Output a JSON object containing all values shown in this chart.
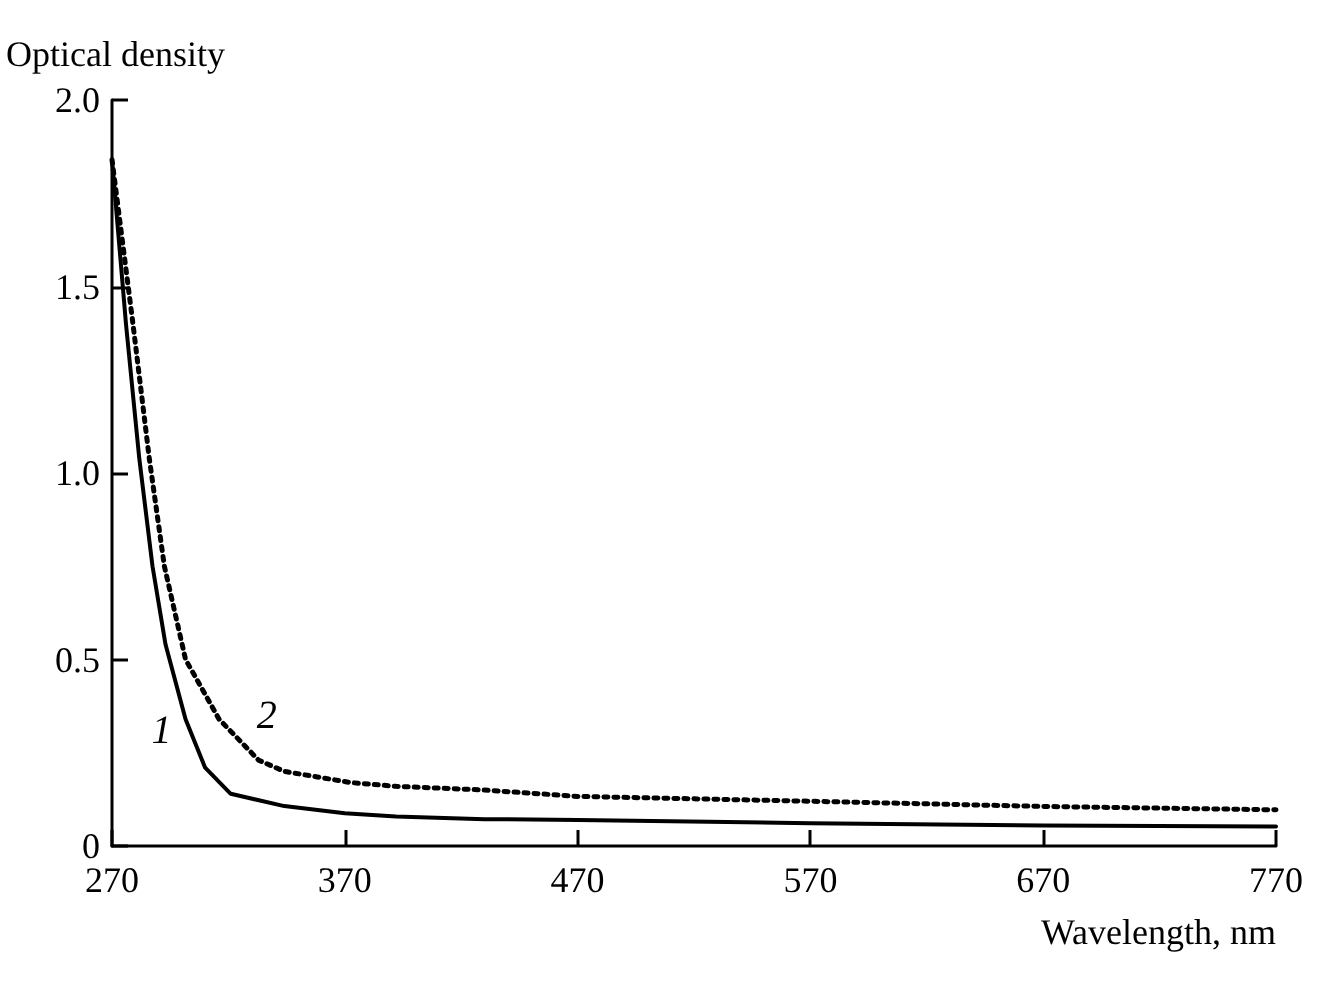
{
  "chart_data": {
    "type": "line",
    "xlabel": "Wavelength, nm",
    "ylabel": "Optical density",
    "xlim": [
      270,
      770
    ],
    "xticks": [
      270,
      370,
      470,
      570,
      670,
      770
    ],
    "ylim": [
      0,
      2.0
    ],
    "yticks": [
      {
        "value": 0,
        "label": "0"
      },
      {
        "value": 0.5,
        "label": "0.5"
      },
      {
        "value": 1.0,
        "label": "1.0"
      },
      {
        "value": 1.5,
        "label": "1.5"
      },
      {
        "value": 2.0,
        "label": "2.0"
      }
    ],
    "grid": false,
    "legend": false,
    "marker": "none",
    "series": [
      {
        "name": "1",
        "color": "#000000",
        "line_style": "solid",
        "x": [
          270,
          276,
          281.7,
          287.4,
          293,
          301.6,
          310,
          321,
          344,
          370,
          392,
          430,
          470,
          570,
          670,
          770
        ],
        "values": [
          1.84,
          1.4,
          1.04,
          0.75,
          0.54,
          0.34,
          0.21,
          0.14,
          0.107,
          0.088,
          0.079,
          0.072,
          0.07,
          0.061,
          0.055,
          0.052
        ]
      },
      {
        "name": "2",
        "color": "#000000",
        "line_style": "dotted",
        "x": [
          270,
          279,
          286,
          292.5,
          301.6,
          316,
          333,
          344,
          372.6,
          392,
          430,
          470,
          570,
          670,
          770
        ],
        "values": [
          1.84,
          1.4,
          1.04,
          0.75,
          0.5,
          0.34,
          0.23,
          0.2,
          0.17,
          0.16,
          0.15,
          0.133,
          0.12,
          0.106,
          0.097
        ]
      }
    ]
  }
}
